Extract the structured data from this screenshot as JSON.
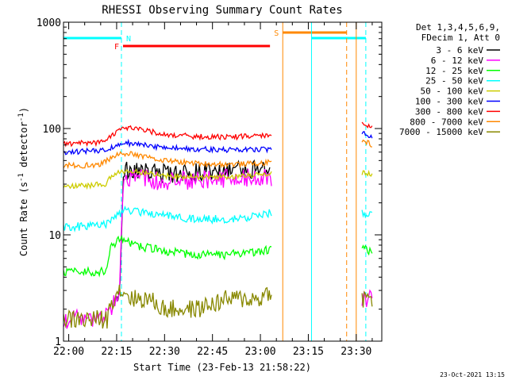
{
  "chart_data": {
    "type": "line",
    "title": "RHESSI Observing Summary Count Rates",
    "xlabel": "Start Time (23-Feb-13 21:58:22)",
    "ylabel_parts": [
      "Count Rate (s",
      "-1",
      " detector",
      "-1",
      ")"
    ],
    "yscale": "log",
    "ylim": [
      1,
      1000
    ],
    "xlim": [
      "21:58:22",
      "23:38"
    ],
    "x_ticks": [
      "22:00",
      "22:15",
      "22:30",
      "22:45",
      "23:00",
      "23:15",
      "23:30"
    ],
    "y_ticks": [
      "1",
      "10",
      "100",
      "1000"
    ],
    "legend_header": [
      "Det 1,3,4,5,6,9,",
      "FDecim 1, Att 0"
    ],
    "series": [
      {
        "name": "3 - 6 keV",
        "color": "#000000",
        "x": [
          "22:15",
          "22:16",
          "22:17",
          "22:18",
          "22:20",
          "22:25",
          "22:30",
          "22:35",
          "22:40",
          "22:45",
          "22:50",
          "22:55",
          "23:00",
          "23:03"
        ],
        "y": [
          2.6,
          3.0,
          35,
          40,
          40,
          39,
          38,
          38,
          39,
          40,
          40,
          41,
          42,
          42
        ]
      },
      {
        "name": "6 - 12 keV",
        "color": "#ff00ff",
        "x": [
          "21:58:22",
          "22:05",
          "22:10",
          "22:13",
          "22:15",
          "22:16",
          "22:17",
          "22:20",
          "22:25",
          "22:30",
          "22:40",
          "22:50",
          "23:00",
          "23:03",
          "23:32",
          "23:35"
        ],
        "y": [
          1.6,
          1.6,
          1.6,
          2.0,
          2.5,
          3.0,
          31,
          34,
          33,
          32,
          33,
          34,
          35,
          36,
          2.5,
          2.5
        ]
      },
      {
        "name": "12 - 25 keV",
        "color": "#00ff00",
        "x": [
          "21:58:22",
          "22:05",
          "22:12",
          "22:13",
          "22:15",
          "22:16",
          "22:17",
          "22:20",
          "22:25",
          "22:30",
          "22:40",
          "22:50",
          "23:00",
          "23:03",
          "23:32",
          "23:35"
        ],
        "y": [
          4.5,
          4.5,
          4.5,
          8.0,
          8.5,
          9.0,
          9.0,
          8.0,
          7.5,
          7.0,
          6.5,
          6.5,
          7.0,
          7.2,
          7.5,
          7.0
        ]
      },
      {
        "name": "25 - 50 keV",
        "color": "#00ffff",
        "x": [
          "21:58:22",
          "22:05",
          "22:12",
          "22:13",
          "22:15",
          "22:16",
          "22:17",
          "22:20",
          "22:25",
          "22:30",
          "22:40",
          "22:50",
          "23:00",
          "23:03",
          "23:32",
          "23:35"
        ],
        "y": [
          12,
          12,
          12.5,
          14,
          15,
          16,
          17,
          17,
          16,
          15,
          14,
          14,
          15,
          16,
          16,
          15
        ]
      },
      {
        "name": "50 - 100 keV",
        "color": "#cccc00",
        "x": [
          "21:58:22",
          "22:05",
          "22:12",
          "22:13",
          "22:15",
          "22:16",
          "22:17",
          "22:20",
          "22:25",
          "22:30",
          "22:40",
          "22:50",
          "23:00",
          "23:03",
          "23:32",
          "23:35"
        ],
        "y": [
          29,
          29,
          30,
          35,
          38,
          39,
          40,
          40,
          38,
          36,
          35,
          35,
          37,
          38,
          38,
          37
        ]
      },
      {
        "name": "100 - 300 keV",
        "color": "#0000ff",
        "x": [
          "21:58:22",
          "22:05",
          "22:10",
          "22:13",
          "22:15",
          "22:18",
          "22:20",
          "22:25",
          "22:30",
          "22:40",
          "22:50",
          "23:00",
          "23:03",
          "23:32",
          "23:33",
          "23:35"
        ],
        "y": [
          60,
          61,
          62,
          66,
          70,
          73,
          72,
          69,
          66,
          64,
          63,
          63,
          64,
          90,
          87,
          83
        ]
      },
      {
        "name": "300 - 800 keV",
        "color": "#ff0000",
        "x": [
          "21:58:22",
          "22:05",
          "22:10",
          "22:13",
          "22:15",
          "22:18",
          "22:20",
          "22:25",
          "22:30",
          "22:40",
          "22:50",
          "23:00",
          "23:03",
          "23:32",
          "23:33",
          "23:35"
        ],
        "y": [
          72,
          73,
          74,
          82,
          95,
          100,
          100,
          95,
          88,
          84,
          83,
          85,
          88,
          118,
          110,
          100
        ]
      },
      {
        "name": "800 - 7000 keV",
        "color": "#ff8800",
        "x": [
          "21:58:22",
          "22:05",
          "22:10",
          "22:13",
          "22:15",
          "22:18",
          "22:20",
          "22:25",
          "22:30",
          "22:40",
          "22:50",
          "23:00",
          "23:03",
          "23:32",
          "23:33",
          "23:35"
        ],
        "y": [
          45,
          45,
          46,
          52,
          57,
          58,
          57,
          54,
          50,
          47,
          46,
          47,
          48,
          78,
          75,
          70
        ]
      },
      {
        "name": "7000 - 15000 keV",
        "color": "#888800",
        "x": [
          "21:58:22",
          "22:05",
          "22:12",
          "22:13",
          "22:15",
          "22:17",
          "22:20",
          "22:25",
          "22:30",
          "22:40",
          "22:50",
          "23:00",
          "23:03",
          "23:32",
          "23:35"
        ],
        "y": [
          1.6,
          1.6,
          1.6,
          2.2,
          3.0,
          3.0,
          2.5,
          2.5,
          2.0,
          2.0,
          2.5,
          2.5,
          3.0,
          2.5,
          2.5
        ]
      }
    ],
    "flags": [
      {
        "label": "N",
        "color": "#00ffff",
        "segments": [
          [
            "21:58:22",
            "22:16:30"
          ],
          [
            "23:16",
            "23:33"
          ]
        ]
      },
      {
        "label": "F",
        "color": "#ff0000",
        "segments": [
          [
            "22:17",
            "23:03"
          ]
        ]
      },
      {
        "label": "S",
        "color": "#ff8800",
        "segments": [
          [
            "23:07",
            "23:27"
          ]
        ]
      }
    ],
    "vlines": [
      {
        "time": "22:16:30",
        "color": "#00ffff",
        "style": "dashed"
      },
      {
        "time": "23:16",
        "color": "#00ffff",
        "style": "solid"
      },
      {
        "time": "23:33",
        "color": "#00ffff",
        "style": "dashed"
      },
      {
        "time": "23:07",
        "color": "#ff8800",
        "style": "solid"
      },
      {
        "time": "23:27",
        "color": "#ff8800",
        "style": "dashed"
      },
      {
        "time": "23:30",
        "color": "#ff8800",
        "style": "solid"
      }
    ],
    "gaps": [
      [
        "23:03:30",
        "23:31:30"
      ]
    ],
    "footer": "23-Oct-2021 13:15"
  }
}
